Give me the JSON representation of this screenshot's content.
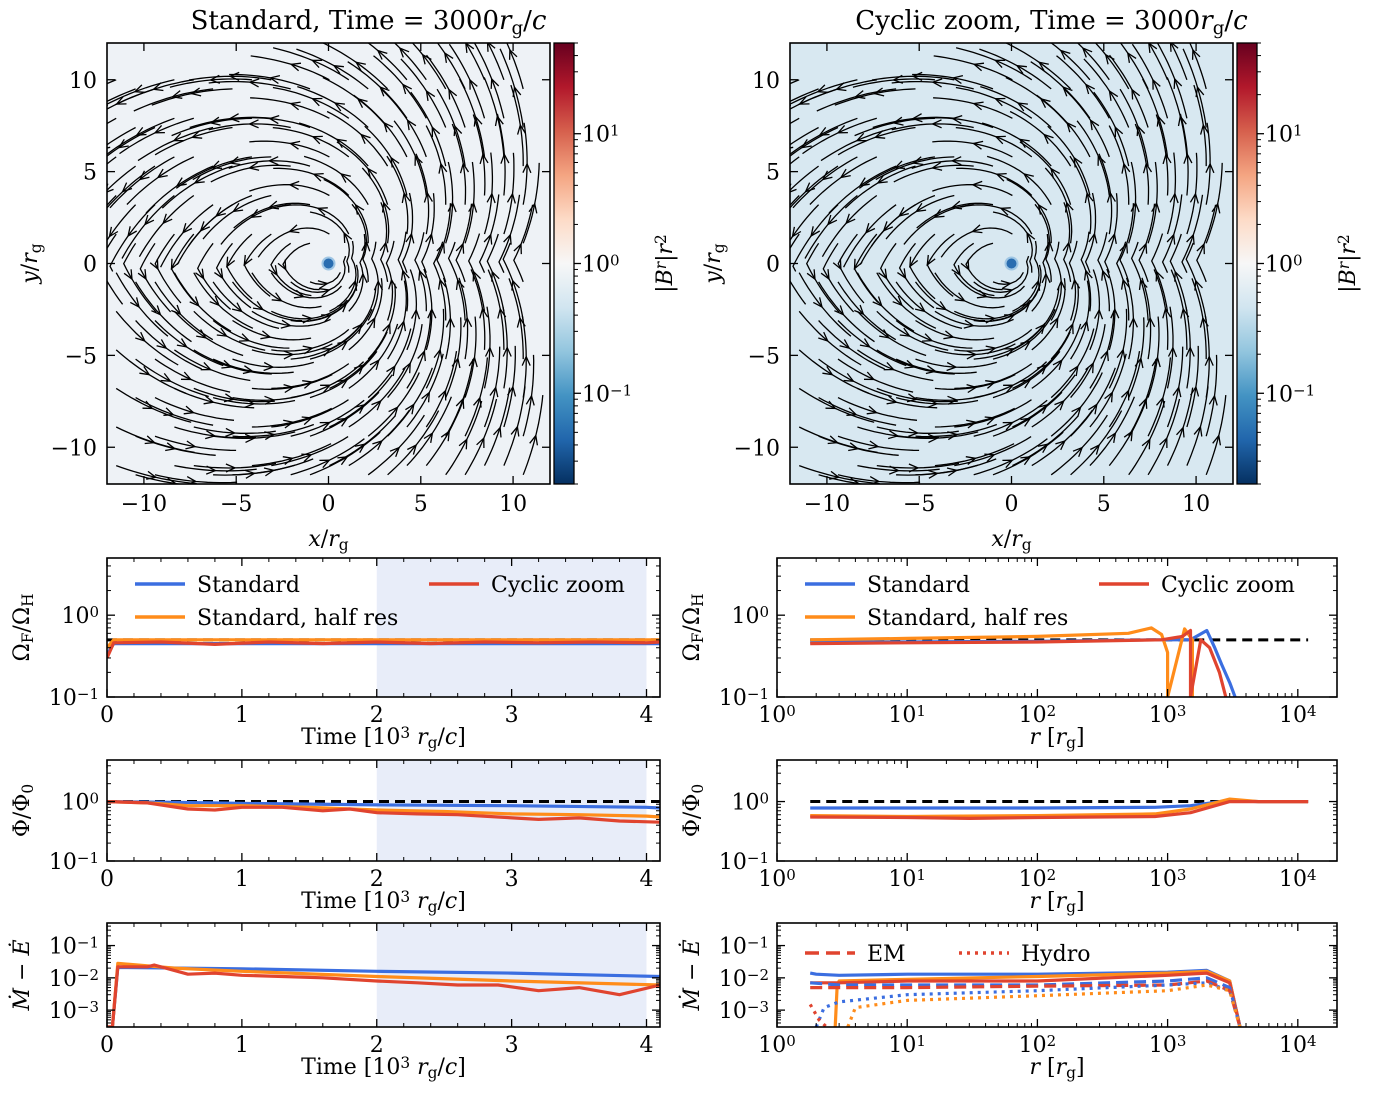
{
  "colors": {
    "standard": "#3b6ee0",
    "half_res": "#ff8c1a",
    "cyclic": "#e0442f",
    "ref": "#000000",
    "shade": "#e8edf9",
    "bg_standard": "#eef2f6",
    "bg_cyclic": "#d8e8f1"
  },
  "chart_data": [
    {
      "id": "stream-standard",
      "type": "streamplot",
      "title": "Standard, Time = 3000 r_g/c",
      "title_parts": [
        "Standard, Time = 3000",
        "r",
        "g",
        "/",
        "c"
      ],
      "xlabel_parts": [
        "x",
        "/",
        "r",
        "g"
      ],
      "ylabel_parts": [
        "y",
        "/",
        "r",
        "g"
      ],
      "xlim": [
        -12,
        12
      ],
      "ylim": [
        -12,
        12
      ],
      "xticks": [
        -10,
        -5,
        0,
        5,
        10
      ],
      "xtick_labels": [
        "−10",
        "−5",
        "0",
        "5",
        "10"
      ],
      "yticks": [
        10,
        5,
        0,
        -5,
        -10
      ],
      "ytick_labels": [
        "10",
        "5",
        "0",
        "−5",
        "−10"
      ],
      "colorbar": {
        "label_parts": [
          "|",
          "B",
          "r",
          "|",
          "r",
          "2"
        ],
        "scale": "log",
        "range": [
          0.02,
          50
        ],
        "ticks": [
          10,
          1,
          0.1
        ],
        "tick_labels": [
          [
            "10",
            "1"
          ],
          [
            "10",
            "0"
          ],
          [
            "10",
            "−1"
          ]
        ],
        "colors": [
          "#67001f",
          "#b2182b",
          "#d6604d",
          "#f4a582",
          "#fddbc7",
          "#f7f7f7",
          "#d1e5f0",
          "#92c5de",
          "#4393c3",
          "#2166ac",
          "#053061"
        ]
      }
    },
    {
      "id": "stream-cyclic",
      "type": "streamplot",
      "title": "Cyclic zoom, Time = 3000 r_g/c",
      "title_parts": [
        "Cyclic zoom, Time = 3000",
        "r",
        "g",
        "/",
        "c"
      ],
      "xlabel_parts": [
        "x",
        "/",
        "r",
        "g"
      ],
      "ylabel_parts": [
        "y",
        "/",
        "r",
        "g"
      ],
      "xlim": [
        -12,
        12
      ],
      "ylim": [
        -12,
        12
      ],
      "xticks": [
        -10,
        -5,
        0,
        5,
        10
      ],
      "xtick_labels": [
        "−10",
        "−5",
        "0",
        "5",
        "10"
      ],
      "yticks": [
        10,
        5,
        0,
        -5,
        -10
      ],
      "ytick_labels": [
        "10",
        "5",
        "0",
        "−5",
        "−10"
      ],
      "colorbar": {
        "label_parts": [
          "|",
          "B",
          "r",
          "|",
          "r",
          "2"
        ],
        "scale": "log",
        "range": [
          0.02,
          50
        ],
        "ticks": [
          10,
          1,
          0.1
        ],
        "tick_labels": [
          [
            "10",
            "1"
          ],
          [
            "10",
            "0"
          ],
          [
            "10",
            "−1"
          ]
        ]
      }
    },
    {
      "id": "omega-time",
      "type": "line",
      "ylabel_parts": [
        "Ω",
        "F",
        "/Ω",
        "H"
      ],
      "xlabel_parts": [
        "Time [10",
        "3",
        " r",
        "g",
        "/",
        "c",
        "]"
      ],
      "xlim": [
        0,
        4.1
      ],
      "ylim": [
        0.1,
        5
      ],
      "yscale": "log",
      "xticks": [
        0,
        1,
        2,
        3,
        4
      ],
      "yticks": [
        1,
        0.1
      ],
      "ytick_labels": [
        [
          "10",
          "0"
        ],
        [
          "10",
          "−1"
        ]
      ],
      "shade": [
        2,
        4
      ],
      "ref_line": 0.5,
      "legend": [
        "Standard",
        "Cyclic zoom",
        "Standard, half res"
      ],
      "series": [
        {
          "name": "Standard",
          "x": [
            0,
            0.05,
            0.5,
            1,
            2,
            3,
            4,
            4.1
          ],
          "y": [
            0.33,
            0.45,
            0.45,
            0.45,
            0.45,
            0.45,
            0.45,
            0.45
          ]
        },
        {
          "name": "Standard, half res",
          "x": [
            0,
            0.05,
            1,
            2,
            3,
            4,
            4.1
          ],
          "y": [
            0.4,
            0.5,
            0.5,
            0.5,
            0.5,
            0.5,
            0.5
          ]
        },
        {
          "name": "Cyclic zoom",
          "x": [
            0,
            0.05,
            0.4,
            0.8,
            1.2,
            1.6,
            2,
            2.4,
            2.8,
            3.2,
            3.6,
            4,
            4.1
          ],
          "y": [
            0.3,
            0.46,
            0.47,
            0.44,
            0.47,
            0.45,
            0.47,
            0.45,
            0.47,
            0.46,
            0.47,
            0.46,
            0.47
          ]
        }
      ]
    },
    {
      "id": "omega-radius",
      "type": "line",
      "ylabel_parts": [
        "Ω",
        "F",
        "/Ω",
        "H"
      ],
      "xlabel_parts": [
        "r",
        " [",
        "r",
        "g",
        "]"
      ],
      "xscale": "log",
      "xlim": [
        1,
        20000
      ],
      "ylim": [
        0.1,
        5
      ],
      "yscale": "log",
      "xticks": [
        1,
        10,
        100,
        1000,
        10000
      ],
      "xtick_labels": [
        [
          "10",
          "0"
        ],
        [
          "10",
          "1"
        ],
        [
          "10",
          "2"
        ],
        [
          "10",
          "3"
        ],
        [
          "10",
          "4"
        ]
      ],
      "yticks": [
        1,
        0.1
      ],
      "ytick_labels": [
        [
          "10",
          "0"
        ],
        [
          "10",
          "−1"
        ]
      ],
      "ref_line": 0.5,
      "legend": [
        "Standard",
        "Cyclic zoom",
        "Standard, half res"
      ],
      "series": [
        {
          "name": "Standard",
          "x": [
            1.8,
            10,
            100,
            800,
            1500,
            2000,
            2300,
            2600,
            3000,
            3300
          ],
          "y": [
            0.47,
            0.47,
            0.48,
            0.5,
            0.5,
            0.65,
            0.4,
            0.25,
            0.15,
            0.1
          ]
        },
        {
          "name": "Standard, half res",
          "x": [
            1.8,
            10,
            100,
            500,
            750,
            900,
            1000,
            1000,
            1350,
            1550,
            1550
          ],
          "y": [
            0.5,
            0.52,
            0.55,
            0.6,
            0.7,
            0.58,
            0.35,
            0.1,
            0.68,
            0.5,
            0.1
          ]
        },
        {
          "name": "Cyclic zoom",
          "x": [
            1.8,
            10,
            100,
            900,
            1300,
            1500,
            1500,
            1800,
            2100,
            2500,
            2800
          ],
          "y": [
            0.45,
            0.46,
            0.47,
            0.5,
            0.55,
            0.65,
            0.1,
            0.5,
            0.4,
            0.2,
            0.1
          ]
        }
      ]
    },
    {
      "id": "flux-time",
      "type": "line",
      "ylabel_parts": [
        "Φ/Φ",
        "0"
      ],
      "xlabel_parts": [
        "Time [10",
        "3",
        " r",
        "g",
        "/",
        "c",
        "]"
      ],
      "xlim": [
        0,
        4.1
      ],
      "ylim": [
        0.1,
        5
      ],
      "yscale": "log",
      "xticks": [
        0,
        1,
        2,
        3,
        4
      ],
      "yticks": [
        1,
        0.1
      ],
      "ytick_labels": [
        [
          "10",
          "0"
        ],
        [
          "10",
          "−1"
        ]
      ],
      "shade": [
        2,
        4
      ],
      "ref_line": 1,
      "series": [
        {
          "name": "Standard",
          "x": [
            0,
            0.5,
            1,
            2,
            3,
            4,
            4.1
          ],
          "y": [
            1,
            0.97,
            0.93,
            0.88,
            0.85,
            0.8,
            0.78
          ]
        },
        {
          "name": "Standard, half res",
          "x": [
            0,
            0.3,
            0.6,
            1,
            1.5,
            2,
            2.5,
            3,
            3.5,
            4,
            4.1
          ],
          "y": [
            1,
            0.95,
            0.85,
            0.85,
            0.8,
            0.72,
            0.68,
            0.62,
            0.6,
            0.57,
            0.55
          ]
        },
        {
          "name": "Cyclic zoom",
          "x": [
            0,
            0.3,
            0.6,
            0.8,
            1,
            1.3,
            1.6,
            1.8,
            2,
            2.3,
            2.6,
            2.9,
            3.2,
            3.5,
            3.8,
            4.1
          ],
          "y": [
            1,
            0.95,
            0.75,
            0.72,
            0.8,
            0.8,
            0.7,
            0.75,
            0.65,
            0.62,
            0.6,
            0.55,
            0.5,
            0.53,
            0.47,
            0.45
          ]
        }
      ]
    },
    {
      "id": "flux-radius",
      "type": "line",
      "ylabel_parts": [
        "Φ/Φ",
        "0"
      ],
      "xlabel_parts": [
        "r",
        " [",
        "r",
        "g",
        "]"
      ],
      "xscale": "log",
      "xlim": [
        1,
        20000
      ],
      "ylim": [
        0.1,
        5
      ],
      "yscale": "log",
      "xticks": [
        1,
        10,
        100,
        1000,
        10000
      ],
      "xtick_labels": [
        [
          "10",
          "0"
        ],
        [
          "10",
          "1"
        ],
        [
          "10",
          "2"
        ],
        [
          "10",
          "3"
        ],
        [
          "10",
          "4"
        ]
      ],
      "yticks": [
        1,
        0.1
      ],
      "ytick_labels": [
        [
          "10",
          "0"
        ],
        [
          "10",
          "−1"
        ]
      ],
      "ref_line": 1,
      "series": [
        {
          "name": "Standard",
          "x": [
            1.8,
            10,
            100,
            800,
            1500,
            3000,
            5000,
            12000
          ],
          "y": [
            0.78,
            0.78,
            0.78,
            0.8,
            0.85,
            1.05,
            1,
            1
          ]
        },
        {
          "name": "Standard, half res",
          "x": [
            1.8,
            10,
            100,
            800,
            1500,
            3000,
            5000,
            12000
          ],
          "y": [
            0.58,
            0.56,
            0.58,
            0.62,
            0.75,
            1.1,
            1,
            1
          ]
        },
        {
          "name": "Cyclic zoom",
          "x": [
            1.8,
            10,
            30,
            100,
            800,
            1500,
            3000,
            5000,
            12000
          ],
          "y": [
            0.55,
            0.54,
            0.52,
            0.54,
            0.56,
            0.65,
            1.0,
            1,
            1
          ]
        }
      ]
    },
    {
      "id": "energy-time",
      "type": "line",
      "ylabel_parts": [
        "Ṁ − Ė"
      ],
      "xlabel_parts": [
        "Time [10",
        "3",
        " r",
        "g",
        "/",
        "c",
        "]"
      ],
      "xlim": [
        0,
        4.1
      ],
      "ylim": [
        0.0003,
        0.5
      ],
      "yscale": "log",
      "xticks": [
        0,
        1,
        2,
        3,
        4
      ],
      "yticks": [
        0.1,
        0.01,
        0.001
      ],
      "ytick_labels": [
        [
          "10",
          "−1"
        ],
        [
          "10",
          "−2"
        ],
        [
          "10",
          "−3"
        ]
      ],
      "shade": [
        2,
        4
      ],
      "series": [
        {
          "name": "Standard",
          "x": [
            0,
            0.04,
            0.08,
            1,
            2,
            3,
            4.1
          ],
          "y": [
            0.0003,
            0.0003,
            0.021,
            0.019,
            0.016,
            0.014,
            0.011
          ]
        },
        {
          "name": "Standard, half res",
          "x": [
            0,
            0.04,
            0.08,
            0.5,
            1,
            2,
            3,
            4.1
          ],
          "y": [
            0.0003,
            0.0003,
            0.028,
            0.02,
            0.016,
            0.011,
            0.008,
            0.006
          ]
        },
        {
          "name": "Cyclic zoom",
          "x": [
            0,
            0.04,
            0.08,
            0.3,
            0.35,
            0.6,
            0.8,
            1,
            1.3,
            1.6,
            2,
            2.3,
            2.6,
            2.9,
            3.2,
            3.5,
            3.8,
            4.1
          ],
          "y": [
            0.0003,
            0.0003,
            0.022,
            0.022,
            0.025,
            0.013,
            0.014,
            0.012,
            0.011,
            0.01,
            0.008,
            0.007,
            0.006,
            0.006,
            0.004,
            0.005,
            0.003,
            0.006
          ]
        }
      ]
    },
    {
      "id": "energy-radius",
      "type": "line",
      "ylabel_parts": [
        "Ṁ − Ė"
      ],
      "xlabel_parts": [
        "r",
        " [",
        "r",
        "g",
        "]"
      ],
      "xscale": "log",
      "xlim": [
        1,
        20000
      ],
      "ylim": [
        0.0003,
        0.5
      ],
      "yscale": "log",
      "xticks": [
        1,
        10,
        100,
        1000,
        10000
      ],
      "xtick_labels": [
        [
          "10",
          "0"
        ],
        [
          "10",
          "1"
        ],
        [
          "10",
          "2"
        ],
        [
          "10",
          "3"
        ],
        [
          "10",
          "4"
        ]
      ],
      "yticks": [
        0.1,
        0.01,
        0.001
      ],
      "ytick_labels": [
        [
          "10",
          "−1"
        ],
        [
          "10",
          "−2"
        ],
        [
          "10",
          "−3"
        ]
      ],
      "legend": [
        "EM",
        "Hydro"
      ],
      "series": [
        {
          "name": "Standard",
          "style": "solid",
          "x": [
            1.8,
            2,
            3,
            10,
            100,
            1000,
            2000,
            3000,
            3600
          ],
          "y": [
            0.014,
            0.013,
            0.012,
            0.013,
            0.013,
            0.015,
            0.017,
            0.008,
            0.0003
          ]
        },
        {
          "name": "Standard, half res",
          "style": "solid",
          "x": [
            2.8,
            2.9,
            3,
            10,
            100,
            1000,
            2000,
            3000,
            3600
          ],
          "y": [
            0.0003,
            0.006,
            0.008,
            0.009,
            0.011,
            0.014,
            0.016,
            0.008,
            0.0003
          ]
        },
        {
          "name": "Cyclic zoom",
          "style": "solid",
          "x": [
            1.8,
            3,
            10,
            100,
            1000,
            2000,
            3000,
            3600
          ],
          "y": [
            0.007,
            0.007,
            0.008,
            0.008,
            0.012,
            0.014,
            0.007,
            0.0003
          ]
        },
        {
          "name": "Standard",
          "style": "dashed",
          "x": [
            1.8,
            3,
            10,
            100,
            1000,
            2000,
            3000,
            3600
          ],
          "y": [
            0.007,
            0.006,
            0.006,
            0.006,
            0.008,
            0.01,
            0.005,
            0.0003
          ]
        },
        {
          "name": "Cyclic zoom",
          "style": "dashed",
          "x": [
            1.8,
            3,
            10,
            100,
            1000,
            2000,
            3000,
            3600
          ],
          "y": [
            0.005,
            0.005,
            0.005,
            0.0055,
            0.006,
            0.008,
            0.004,
            0.0003
          ]
        },
        {
          "name": "Standard",
          "style": "dotted",
          "x": [
            2.0,
            2.3,
            3,
            10,
            100,
            1000,
            2000,
            3000,
            3600
          ],
          "y": [
            0.0003,
            0.0012,
            0.0018,
            0.003,
            0.004,
            0.006,
            0.007,
            0.004,
            0.0003
          ]
        },
        {
          "name": "Standard, half res",
          "style": "dotted",
          "x": [
            3.5,
            4,
            10,
            100,
            1000,
            2000,
            3000,
            3600
          ],
          "y": [
            0.0003,
            0.0012,
            0.002,
            0.0028,
            0.004,
            0.006,
            0.004,
            0.0003
          ]
        },
        {
          "name": "Cyclic zoom",
          "style": "dotted",
          "x": [
            1.8,
            2.1,
            2.4
          ],
          "y": [
            0.0015,
            0.0005,
            0.0003
          ]
        }
      ]
    }
  ]
}
